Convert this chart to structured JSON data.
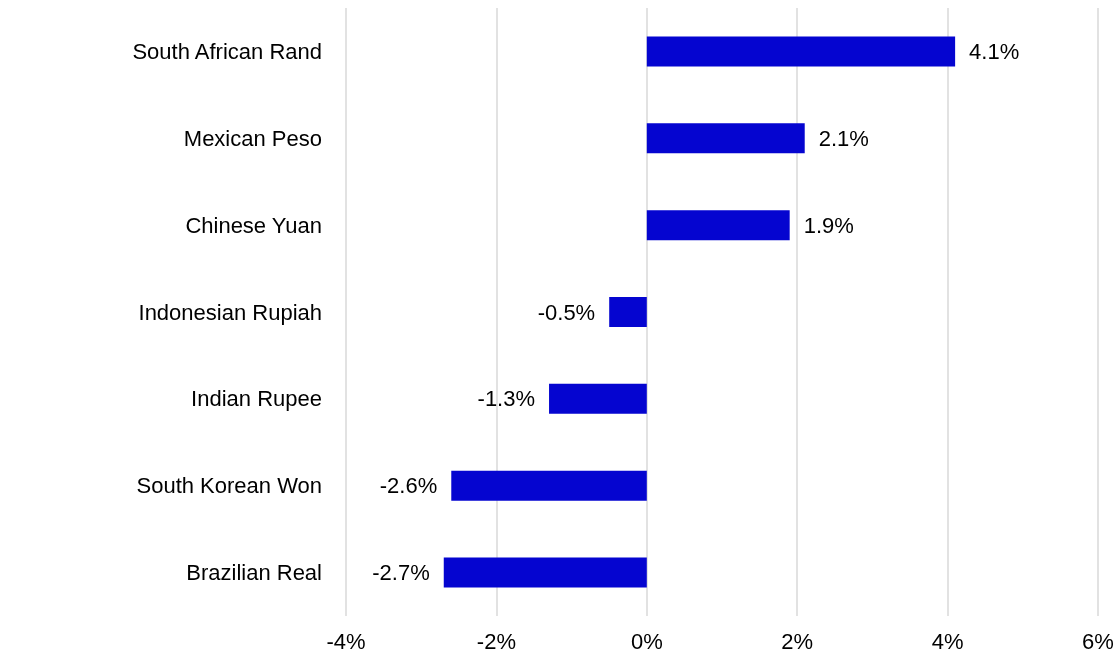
{
  "chart_data": {
    "type": "bar",
    "orientation": "horizontal",
    "categories": [
      "South African Rand",
      "Mexican Peso",
      "Chinese Yuan",
      "Indonesian Rupiah",
      "Indian Rupee",
      "South Korean Won",
      "Brazilian Real"
    ],
    "series": [
      {
        "color": "#0505d0",
        "values": [
          4.1,
          2.1,
          1.9,
          -0.5,
          -1.3,
          -2.6,
          -2.7
        ],
        "value_labels": [
          "4.1%",
          "2.1%",
          "1.9%",
          "-0.5%",
          "-1.3%",
          "-2.6%",
          "-2.7%"
        ]
      }
    ],
    "xlim": [
      -4,
      6
    ],
    "xticks": [
      {
        "value": -4,
        "label": "-4%"
      },
      {
        "value": -2,
        "label": "-2%"
      },
      {
        "value": 0,
        "label": "0%"
      },
      {
        "value": 2,
        "label": "2%"
      },
      {
        "value": 4,
        "label": "4%"
      },
      {
        "value": 6,
        "label": "6%"
      }
    ],
    "grid": "x"
  }
}
